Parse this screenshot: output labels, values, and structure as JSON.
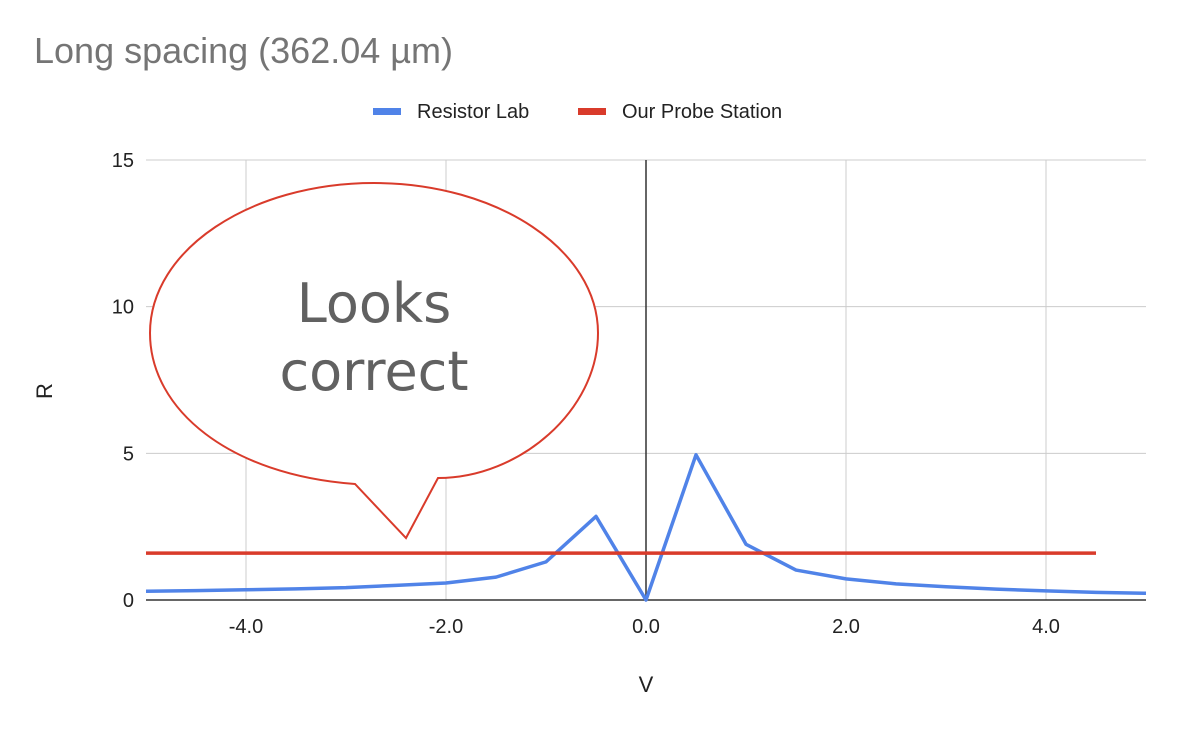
{
  "chart_data": {
    "type": "line",
    "title": "Long spacing (362.04 µm)",
    "xlabel": "V",
    "ylabel": "R",
    "xlim": [
      -5,
      5
    ],
    "ylim": [
      0,
      15
    ],
    "xticks": [
      -4,
      -2,
      0,
      2,
      4
    ],
    "xtick_labels": [
      "-4.0",
      "-2.0",
      "0.0",
      "2.0",
      "4.0"
    ],
    "yticks": [
      0,
      5,
      10,
      15
    ],
    "ytick_labels": [
      "0",
      "5",
      "10",
      "15"
    ],
    "grid": true,
    "legend_position": "top-center",
    "series": [
      {
        "name": "Resistor Lab",
        "color": "#5083e8",
        "x": [
          -5.0,
          -4.5,
          -4.0,
          -3.5,
          -3.0,
          -2.5,
          -2.0,
          -1.5,
          -1.0,
          -0.5,
          0.0,
          0.5,
          1.0,
          1.5,
          2.0,
          2.5,
          3.0,
          3.5,
          4.0,
          4.5,
          5.0
        ],
        "y": [
          0.3,
          0.32,
          0.35,
          0.38,
          0.42,
          0.5,
          0.58,
          0.78,
          1.3,
          2.85,
          0.0,
          4.95,
          1.9,
          1.02,
          0.72,
          0.55,
          0.45,
          0.37,
          0.31,
          0.26,
          0.23
        ]
      },
      {
        "name": "Our Probe Station",
        "color": "#d93b2b",
        "x": [
          -5.0,
          4.5
        ],
        "y": [
          1.6,
          1.6
        ]
      }
    ],
    "annotations": [
      {
        "type": "callout",
        "text_lines": [
          "Looks",
          "correct"
        ],
        "border_color": "#d93b2b",
        "text_color": "#616161"
      }
    ]
  }
}
